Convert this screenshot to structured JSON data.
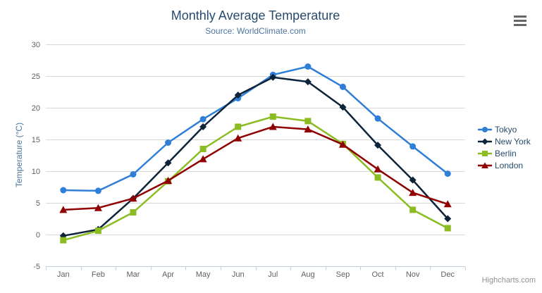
{
  "chart_data": {
    "type": "line",
    "title": "Monthly Average Temperature",
    "subtitle": "Source: WorldClimate.com",
    "xlabel": "",
    "ylabel": "Temperature (°C)",
    "ylim": [
      -5,
      30
    ],
    "ytick_step": 5,
    "grid": true,
    "legend_position": "right-middle-vertical",
    "categories": [
      "Jan",
      "Feb",
      "Mar",
      "Apr",
      "May",
      "Jun",
      "Jul",
      "Aug",
      "Sep",
      "Oct",
      "Nov",
      "Dec"
    ],
    "series": [
      {
        "name": "Tokyo",
        "color": "#2f7ed8",
        "marker": "circle",
        "values": [
          7.0,
          6.9,
          9.5,
          14.5,
          18.2,
          21.5,
          25.2,
          26.5,
          23.3,
          18.3,
          13.9,
          9.6
        ]
      },
      {
        "name": "New York",
        "color": "#0d233a",
        "marker": "diamond",
        "values": [
          -0.2,
          0.8,
          5.7,
          11.3,
          17.0,
          22.0,
          24.8,
          24.1,
          20.1,
          14.1,
          8.6,
          2.5
        ]
      },
      {
        "name": "Berlin",
        "color": "#8bbc21",
        "marker": "square",
        "values": [
          -0.9,
          0.6,
          3.5,
          8.4,
          13.5,
          17.0,
          18.6,
          17.9,
          14.3,
          9.0,
          3.9,
          1.0
        ]
      },
      {
        "name": "London",
        "color": "#910000",
        "marker": "triangle",
        "values": [
          3.9,
          4.2,
          5.7,
          8.5,
          11.9,
          15.2,
          17.0,
          16.6,
          14.2,
          10.3,
          6.6,
          4.8
        ]
      }
    ]
  },
  "credit": {
    "label": "Highcharts.com"
  },
  "menu": {
    "icon": "hamburger-menu-icon"
  },
  "colors": {
    "title": "#274b6d",
    "subtitle": "#4d759e",
    "axis_title": "#4d759e",
    "axis_label": "#606060",
    "grid_line": "#d8d8d8",
    "axis_line": "#c0d0e0",
    "legend_text": "#274b6d",
    "credit_text": "#909090",
    "menu_icon": "#666666"
  }
}
